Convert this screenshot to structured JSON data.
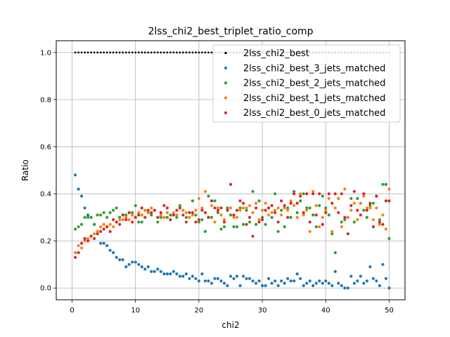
{
  "chart_data": {
    "type": "scatter",
    "title": "2lss_chi2_best_triplet_ratio_comp",
    "xlabel": "chi2",
    "ylabel": "Ratio",
    "xlim": [
      -2.5,
      52.5
    ],
    "ylim": [
      -0.05,
      1.05
    ],
    "xticks": [
      0,
      10,
      20,
      30,
      40,
      50
    ],
    "yticks": [
      0.0,
      0.2,
      0.4,
      0.6,
      0.8,
      1.0
    ],
    "xtick_labels": [
      "0",
      "10",
      "20",
      "30",
      "40",
      "50"
    ],
    "ytick_labels": [
      "0.0",
      "0.2",
      "0.4",
      "0.6",
      "0.8",
      "1.0"
    ],
    "grid": true,
    "legend_position": "top-right",
    "x": [
      0.5,
      1.0,
      1.5,
      2.0,
      2.5,
      3.0,
      3.5,
      4.0,
      4.5,
      5.0,
      5.5,
      6.0,
      6.5,
      7.0,
      7.5,
      8.0,
      8.5,
      9.0,
      9.5,
      10.0,
      10.5,
      11.0,
      11.5,
      12.0,
      12.5,
      13.0,
      13.5,
      14.0,
      14.5,
      15.0,
      15.5,
      16.0,
      16.5,
      17.0,
      17.5,
      18.0,
      18.5,
      19.0,
      19.5,
      20.0,
      20.5,
      21.0,
      21.5,
      22.0,
      22.5,
      23.0,
      23.5,
      24.0,
      24.5,
      25.0,
      25.5,
      26.0,
      26.5,
      27.0,
      27.5,
      28.0,
      28.5,
      29.0,
      29.5,
      30.0,
      30.5,
      31.0,
      31.5,
      32.0,
      32.5,
      33.0,
      33.5,
      34.0,
      34.5,
      35.0,
      35.5,
      36.0,
      36.5,
      37.0,
      37.5,
      38.0,
      38.5,
      39.0,
      39.5,
      40.0,
      40.5,
      41.0,
      41.5,
      42.0,
      42.5,
      43.0,
      43.5,
      44.0,
      44.5,
      45.0,
      45.5,
      46.0,
      46.5,
      47.0,
      47.5,
      48.0,
      48.5,
      49.0,
      49.5,
      50.0
    ],
    "series": [
      {
        "name": "2lss_chi2_best",
        "color": "#000000",
        "values": [
          1,
          1,
          1,
          1,
          1,
          1,
          1,
          1,
          1,
          1,
          1,
          1,
          1,
          1,
          1,
          1,
          1,
          1,
          1,
          1,
          1,
          1,
          1,
          1,
          1,
          1,
          1,
          1,
          1,
          1,
          1,
          1,
          1,
          1,
          1,
          1,
          1,
          1,
          1,
          1,
          1,
          1,
          1,
          1,
          1,
          1,
          1,
          1,
          1,
          1,
          1,
          1,
          1,
          1,
          1,
          1,
          1,
          1,
          1,
          1,
          1,
          1,
          1,
          1,
          1,
          1,
          1,
          1,
          1,
          1,
          1,
          1,
          1,
          1,
          1,
          1,
          1,
          1,
          1,
          1,
          1,
          1,
          1,
          1,
          1,
          1,
          1,
          1,
          1,
          1,
          1,
          1,
          1,
          1,
          1,
          1,
          1,
          1,
          1,
          1
        ]
      },
      {
        "name": "2lss_chi2_best_3_jets_matched",
        "color": "#1f77b4",
        "values": [
          0.48,
          0.42,
          0.39,
          0.34,
          0.31,
          0.3,
          0.27,
          0.24,
          0.19,
          0.19,
          0.18,
          0.16,
          0.15,
          0.13,
          0.12,
          0.12,
          0.09,
          0.1,
          0.11,
          0.11,
          0.1,
          0.09,
          0.08,
          0.09,
          0.07,
          0.07,
          0.08,
          0.07,
          0.06,
          0.06,
          0.06,
          0.07,
          0.06,
          0.05,
          0.05,
          0.06,
          0.04,
          0.05,
          0.04,
          0.03,
          0.06,
          0.03,
          0.03,
          0.02,
          0.04,
          0.04,
          0.03,
          0.02,
          0.01,
          0.05,
          0.04,
          0.05,
          0.01,
          0.05,
          0.04,
          0.04,
          0.03,
          0.02,
          0.03,
          0.01,
          0.01,
          0.04,
          0.02,
          0.03,
          0.01,
          0.03,
          0.02,
          0.04,
          0.03,
          0.03,
          0.06,
          0.04,
          0.01,
          0.02,
          0.03,
          0.01,
          0.02,
          0.03,
          0.02,
          0.03,
          0.02,
          0.01,
          0.07,
          0.02,
          0.01,
          0.0,
          0.0,
          0.05,
          0.02,
          0.03,
          0.05,
          0.02,
          0.03,
          0.09,
          0.04,
          0.03,
          0.01,
          0.1,
          0.04,
          0.0
        ]
      },
      {
        "name": "2lss_chi2_best_2_jets_matched",
        "color": "#2ca02c",
        "values": [
          0.25,
          0.26,
          0.27,
          0.3,
          0.3,
          0.3,
          0.27,
          0.31,
          0.31,
          0.32,
          0.3,
          0.32,
          0.33,
          0.34,
          0.3,
          0.31,
          0.31,
          0.32,
          0.32,
          0.35,
          0.28,
          0.28,
          0.33,
          0.32,
          0.31,
          0.33,
          0.28,
          0.3,
          0.3,
          0.3,
          0.31,
          0.31,
          0.3,
          0.35,
          0.33,
          0.3,
          0.3,
          0.37,
          0.31,
          0.28,
          0.29,
          0.24,
          0.39,
          0.3,
          0.37,
          0.32,
          0.25,
          0.26,
          0.34,
          0.31,
          0.26,
          0.26,
          0.34,
          0.27,
          0.33,
          0.28,
          0.41,
          0.27,
          0.37,
          0.3,
          0.27,
          0.34,
          0.3,
          0.4,
          0.24,
          0.33,
          0.26,
          0.34,
          0.3,
          0.41,
          0.32,
          0.37,
          0.4,
          0.34,
          0.34,
          0.31,
          0.26,
          0.35,
          0.39,
          0.34,
          0.31,
          0.23,
          0.15,
          0.38,
          0.28,
          0.29,
          0.3,
          0.38,
          0.28,
          0.38,
          0.36,
          0.33,
          0.3,
          0.35,
          0.36,
          0.39,
          0.29,
          0.44,
          0.44,
          0.21
        ]
      },
      {
        "name": "2lss_chi2_best_1_jets_matched",
        "color": "#ff7f0e",
        "values": [
          0.15,
          0.18,
          0.17,
          0.2,
          0.21,
          0.22,
          0.23,
          0.24,
          0.26,
          0.27,
          0.26,
          0.27,
          0.26,
          0.28,
          0.29,
          0.29,
          0.3,
          0.29,
          0.31,
          0.3,
          0.32,
          0.31,
          0.33,
          0.32,
          0.34,
          0.33,
          0.3,
          0.31,
          0.3,
          0.32,
          0.29,
          0.32,
          0.31,
          0.34,
          0.33,
          0.32,
          0.3,
          0.31,
          0.33,
          0.38,
          0.34,
          0.41,
          0.3,
          0.35,
          0.28,
          0.34,
          0.31,
          0.29,
          0.33,
          0.34,
          0.3,
          0.3,
          0.33,
          0.34,
          0.34,
          0.35,
          0.32,
          0.36,
          0.29,
          0.33,
          0.36,
          0.31,
          0.32,
          0.33,
          0.34,
          0.31,
          0.34,
          0.33,
          0.37,
          0.35,
          0.3,
          0.4,
          0.31,
          0.33,
          0.24,
          0.41,
          0.35,
          0.26,
          0.3,
          0.33,
          0.38,
          0.24,
          0.34,
          0.38,
          0.26,
          0.42,
          0.3,
          0.33,
          0.36,
          0.29,
          0.36,
          0.39,
          0.34,
          0.34,
          0.29,
          0.34,
          0.27,
          0.31,
          0.25,
          0.42
        ]
      },
      {
        "name": "2lss_chi2_best_0_jets_matched",
        "color": "#d62728",
        "values": [
          0.13,
          0.15,
          0.19,
          0.21,
          0.2,
          0.22,
          0.21,
          0.23,
          0.24,
          0.25,
          0.26,
          0.24,
          0.29,
          0.28,
          0.27,
          0.31,
          0.29,
          0.32,
          0.28,
          0.3,
          0.31,
          0.34,
          0.3,
          0.33,
          0.32,
          0.33,
          0.3,
          0.32,
          0.35,
          0.34,
          0.29,
          0.31,
          0.33,
          0.34,
          0.31,
          0.28,
          0.32,
          0.32,
          0.28,
          0.29,
          0.33,
          0.32,
          0.3,
          0.37,
          0.34,
          0.33,
          0.34,
          0.28,
          0.33,
          0.44,
          0.31,
          0.33,
          0.37,
          0.36,
          0.27,
          0.3,
          0.22,
          0.34,
          0.28,
          0.29,
          0.33,
          0.34,
          0.35,
          0.32,
          0.28,
          0.37,
          0.35,
          0.3,
          0.36,
          0.4,
          0.36,
          0.39,
          0.32,
          0.4,
          0.28,
          0.4,
          0.31,
          0.4,
          0.27,
          0.32,
          0.4,
          0.36,
          0.4,
          0.32,
          0.4,
          0.3,
          0.23,
          0.35,
          0.41,
          0.33,
          0.31,
          0.4,
          0.33,
          0.36,
          0.26,
          0.39,
          0.28,
          0.27,
          0.37,
          0.37
        ]
      }
    ]
  }
}
